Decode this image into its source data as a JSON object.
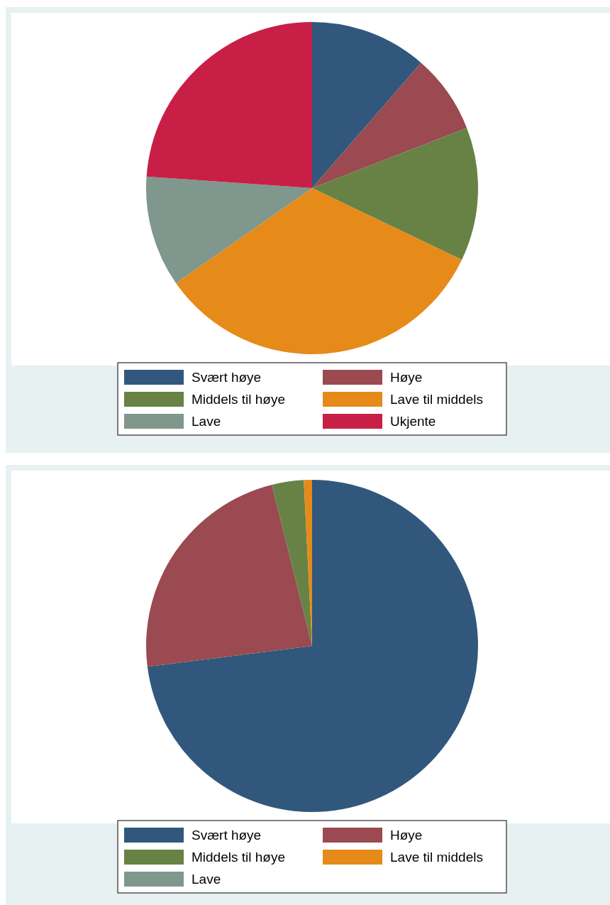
{
  "chart_data": [
    {
      "type": "pie",
      "categories": [
        "Svært høye",
        "Høye",
        "Middels til høye",
        "Lave til middels",
        "Lave",
        "Ukjente"
      ],
      "values": [
        11.4,
        7.7,
        13.0,
        33.2,
        10.8,
        23.9
      ],
      "colors": [
        "#31587c",
        "#9a4a50",
        "#678244",
        "#e68a1a",
        "#7f978d",
        "#c81f47"
      ],
      "legend": "bottom"
    },
    {
      "type": "pie",
      "categories": [
        "Svært høye",
        "Høye",
        "Middels til høye",
        "Lave til middels",
        "Lave"
      ],
      "values": [
        73.0,
        23.1,
        3.1,
        0.8,
        0
      ],
      "colors": [
        "#31587c",
        "#9a4a50",
        "#678244",
        "#e68a1a",
        "#7f978d"
      ],
      "legend": "bottom"
    }
  ]
}
